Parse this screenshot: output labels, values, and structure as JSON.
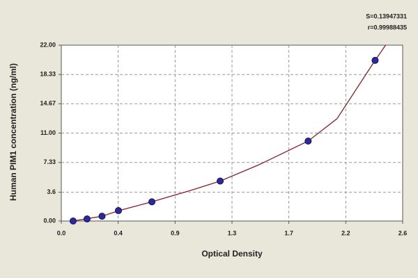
{
  "chart_data": {
    "type": "scatter",
    "x_label": "Optical Density",
    "y_label": "Human PIM1 concentration (ng/ml)",
    "annotations": [
      "S=0.13947331",
      "r=0.99988435"
    ],
    "xlim": [
      0,
      2.6
    ],
    "ylim": [
      0,
      22
    ],
    "xticks": [
      {
        "value": 0,
        "label": "0.0"
      },
      {
        "value": 0.433,
        "label": "0.4"
      },
      {
        "value": 0.867,
        "label": "0.9"
      },
      1.3,
      {
        "value": 1.733,
        "label": "1.7"
      },
      {
        "value": 2.167,
        "label": "2.2"
      },
      2.6
    ],
    "yticks": [
      {
        "value": 0,
        "label": "0.00"
      },
      3.6,
      7.33,
      {
        "value": 11,
        "label": "11.00"
      },
      14.67,
      18.33,
      {
        "value": 22,
        "label": "22.00"
      }
    ],
    "grid": true,
    "series": [
      {
        "type": "line",
        "color": "#8b1c24",
        "x": [
          0.09,
          0.2,
          0.31,
          0.44,
          0.69,
          1.0,
          1.21,
          1.5,
          1.88,
          2.1,
          2.39,
          2.47
        ],
        "values": [
          0,
          0.3,
          0.6,
          1.3,
          2.4,
          3.9,
          5.0,
          7.0,
          10.0,
          12.8,
          20.1,
          22
        ]
      },
      {
        "type": "scatter",
        "color": "#2a2a9e",
        "x": [
          0.09,
          0.196,
          0.31,
          0.435,
          0.69,
          1.21,
          1.88,
          2.39
        ],
        "values": [
          0,
          0.26,
          0.6,
          1.3,
          2.4,
          5.0,
          10.0,
          20.1
        ]
      }
    ]
  }
}
